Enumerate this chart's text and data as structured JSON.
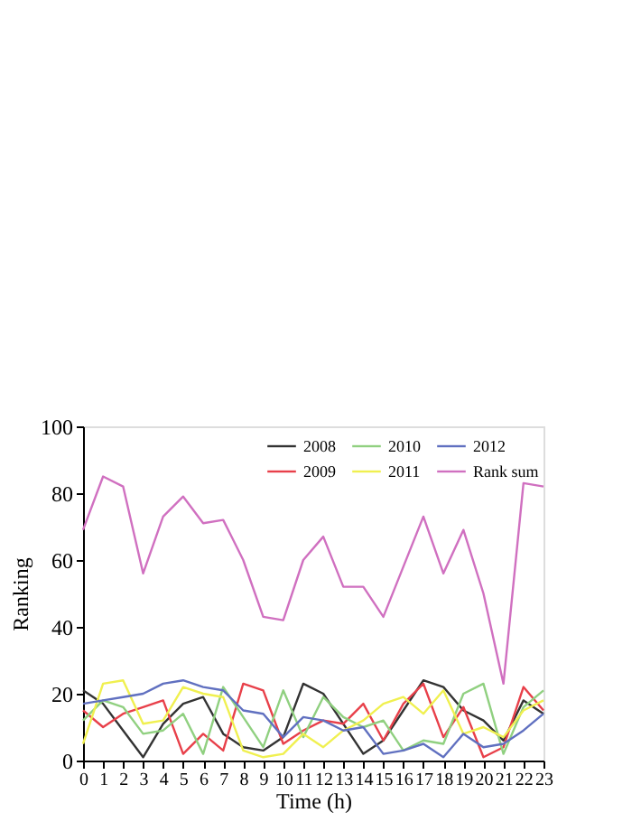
{
  "chart_data": {
    "type": "line",
    "xlabel": "Time (h)",
    "ylabel": "Ranking",
    "x": [
      0,
      1,
      2,
      3,
      4,
      5,
      6,
      7,
      8,
      9,
      10,
      11,
      12,
      13,
      14,
      15,
      16,
      17,
      18,
      19,
      20,
      21,
      22,
      23
    ],
    "xlim": [
      0,
      23
    ],
    "xticks": [
      0,
      1,
      2,
      3,
      4,
      5,
      6,
      7,
      8,
      9,
      10,
      11,
      12,
      13,
      14,
      15,
      16,
      17,
      18,
      19,
      20,
      21,
      22,
      23
    ],
    "ylim": [
      0,
      100
    ],
    "yticks": [
      0,
      20,
      40,
      60,
      80,
      100
    ],
    "grid": false,
    "legend": "top right",
    "marker": "none",
    "line_style": "solid",
    "series": [
      {
        "name": "2008",
        "color": "#333333",
        "values": [
          21,
          17,
          9,
          1,
          11,
          17,
          19,
          8,
          4,
          3,
          7,
          23,
          20,
          11,
          2,
          6,
          15,
          24,
          22,
          15,
          12,
          6,
          18,
          14
        ]
      },
      {
        "name": "2009",
        "color": "#e8404a",
        "values": [
          15,
          10,
          14,
          16,
          18,
          2,
          8,
          3,
          23,
          21,
          5,
          9,
          12,
          11,
          17,
          6,
          17,
          23,
          7,
          16,
          1,
          4,
          22,
          15
        ]
      },
      {
        "name": "2010",
        "color": "#90d080",
        "values": [
          12,
          18,
          16,
          8,
          9,
          14,
          2,
          22,
          13,
          4,
          21,
          7,
          19,
          13,
          10,
          12,
          3,
          6,
          5,
          20,
          23,
          2,
          16,
          21
        ]
      },
      {
        "name": "2011",
        "color": "#f0f050",
        "values": [
          5,
          23,
          24,
          11,
          12,
          22,
          20,
          19,
          3,
          1,
          2,
          8,
          4,
          9,
          12,
          17,
          19,
          14,
          21,
          8,
          10,
          7,
          15,
          18
        ]
      },
      {
        "name": "2012",
        "color": "#6070c0",
        "values": [
          17,
          18,
          19,
          20,
          23,
          24,
          22,
          21,
          15,
          14,
          7,
          13,
          12,
          9,
          10,
          2,
          3,
          5,
          1,
          8,
          4,
          5,
          9,
          14
        ]
      },
      {
        "name": "Rank sum",
        "color": "#d070c0",
        "values": [
          69,
          85,
          82,
          56,
          73,
          79,
          71,
          72,
          60,
          43,
          42,
          60,
          67,
          52,
          52,
          43,
          58,
          73,
          56,
          69,
          50,
          23,
          83,
          82
        ]
      }
    ]
  }
}
